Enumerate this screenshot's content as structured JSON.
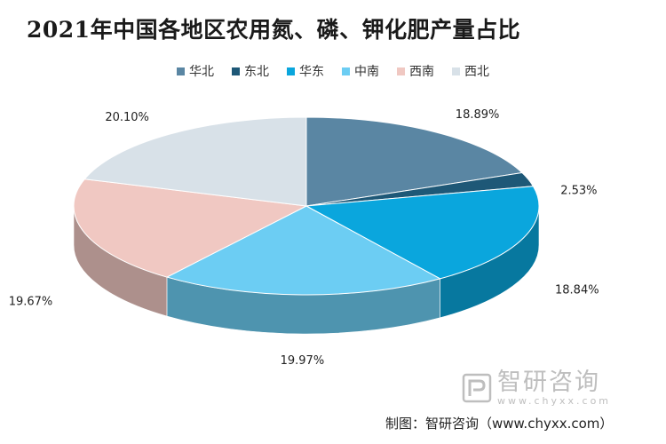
{
  "chart_data": {
    "type": "pie",
    "title": "2021年中国各地区农用氮、磷、钾化肥产量占比",
    "legend_position": "top",
    "categories": [
      "华北",
      "东北",
      "华东",
      "中南",
      "西南",
      "西北"
    ],
    "values": [
      18.89,
      2.53,
      18.84,
      19.97,
      19.67,
      20.1
    ],
    "labels": [
      "18.89%",
      "2.53%",
      "18.84%",
      "19.97%",
      "19.67%",
      "20.10%"
    ],
    "colors": [
      "#5a86a3",
      "#1e5877",
      "#0aa6dd",
      "#6ccdf3",
      "#f0c8c2",
      "#d8e1e8"
    ]
  },
  "watermark": {
    "name": "智研咨询",
    "url": "www.chyxx.com"
  },
  "credit": "制图：智研咨询（www.chyxx.com）"
}
